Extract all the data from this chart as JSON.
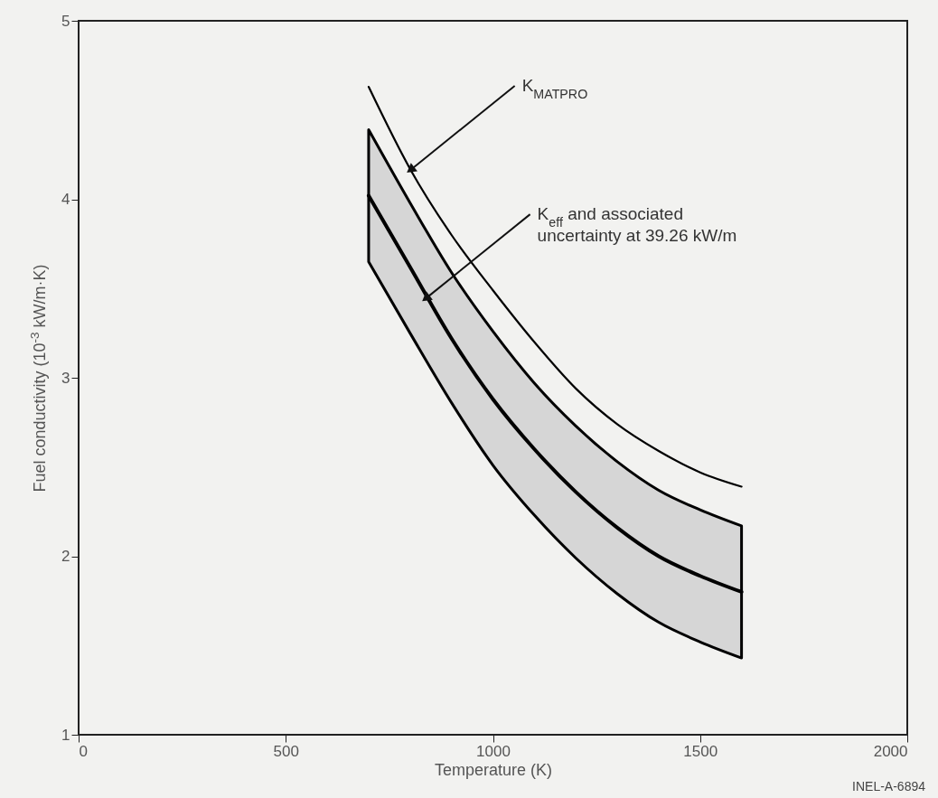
{
  "chart_data": {
    "type": "line",
    "xlabel": "Temperature (K)",
    "ylabel": "Fuel conductivity (10$^{-3}$ kW/m·K)",
    "x": [
      700,
      800,
      900,
      1000,
      1100,
      1200,
      1300,
      1400,
      1500,
      1600
    ],
    "series": [
      {
        "color": "#000000",
        "values": [
          4.63,
          4.17,
          3.8,
          3.49,
          3.2,
          2.94,
          2.74,
          2.59,
          2.47,
          2.39
        ]
      },
      {
        "color": "#000000",
        "values": [
          4.02,
          3.62,
          3.22,
          2.88,
          2.6,
          2.36,
          2.16,
          2.0,
          1.89,
          1.8
        ],
        "lower": [
          3.65,
          3.25,
          2.86,
          2.51,
          2.23,
          1.99,
          1.79,
          1.63,
          1.52,
          1.43
        ],
        "upper": [
          4.39,
          3.98,
          3.59,
          3.26,
          2.97,
          2.73,
          2.53,
          2.37,
          2.26,
          2.17
        ]
      }
    ],
    "annotations": [
      {
        "text": "K$_{MATPRO}$",
        "x": 804,
        "y": 4.17
      },
      {
        "text": "K$_{eff}$ and associated\nuncertainty at 39.26 kW/m",
        "x": 841,
        "y": 3.45
      },
      "INEL-A-6894"
    ],
    "xlim": [
      0,
      2000
    ],
    "ylim": [
      1,
      5
    ],
    "xticks": [
      0,
      500,
      1000,
      1500,
      2000
    ],
    "yticks": [
      1,
      2,
      3,
      4,
      5
    ]
  }
}
